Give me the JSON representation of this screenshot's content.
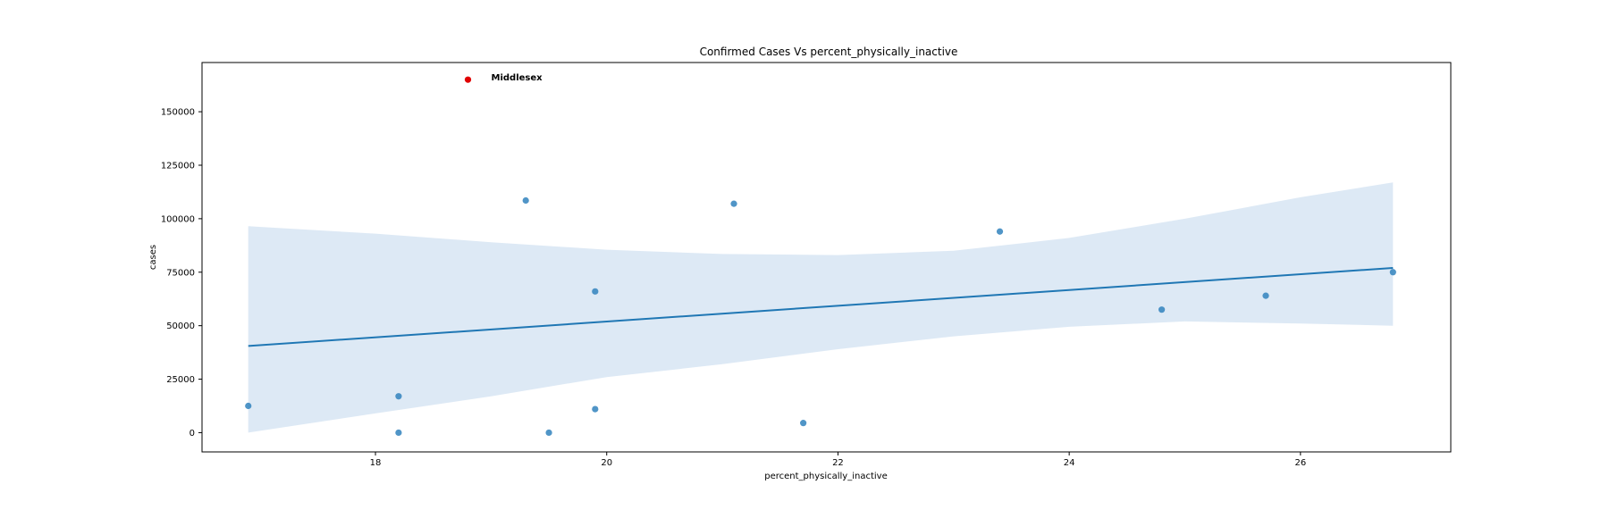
{
  "chart_data": {
    "type": "scatter",
    "title": "Confirmed Cases Vs percent_physically_inactive",
    "xlabel": "percent_physically_inactive",
    "ylabel": "cases",
    "xlim": [
      16.5,
      27.3
    ],
    "ylim": [
      -9000,
      173000
    ],
    "x_ticks": [
      18,
      20,
      22,
      24,
      26
    ],
    "y_ticks": [
      0,
      25000,
      50000,
      75000,
      100000,
      125000,
      150000
    ],
    "grid": false,
    "colors": {
      "points": "#3182bd",
      "regression_line": "#1f77b4",
      "confidence_band": "#c6dbef",
      "highlight": "#e00000"
    },
    "points": [
      {
        "x": 16.9,
        "y": 12500
      },
      {
        "x": 18.2,
        "y": 17000
      },
      {
        "x": 18.2,
        "y": 0
      },
      {
        "x": 19.3,
        "y": 108500
      },
      {
        "x": 19.5,
        "y": 0
      },
      {
        "x": 19.9,
        "y": 66000
      },
      {
        "x": 19.9,
        "y": 11000
      },
      {
        "x": 21.1,
        "y": 107000
      },
      {
        "x": 21.7,
        "y": 4500
      },
      {
        "x": 23.4,
        "y": 94000
      },
      {
        "x": 24.8,
        "y": 57500
      },
      {
        "x": 25.7,
        "y": 64000
      },
      {
        "x": 26.8,
        "y": 75000
      }
    ],
    "highlight_point": {
      "x": 18.8,
      "y": 165000,
      "label": "Middlesex"
    },
    "regression_line": {
      "x": [
        16.9,
        26.8
      ],
      "y": [
        40500,
        77000
      ]
    },
    "confidence_band": {
      "x": [
        16.9,
        18.0,
        19.0,
        20.0,
        21.0,
        22.0,
        23.0,
        24.0,
        25.0,
        26.0,
        26.8
      ],
      "upper": [
        96500,
        93000,
        89000,
        85500,
        83500,
        83000,
        85000,
        91000,
        100000,
        110000,
        117000
      ],
      "lower": [
        0,
        9000,
        17000,
        26000,
        32000,
        39000,
        45000,
        49500,
        52000,
        51000,
        50000
      ]
    }
  }
}
